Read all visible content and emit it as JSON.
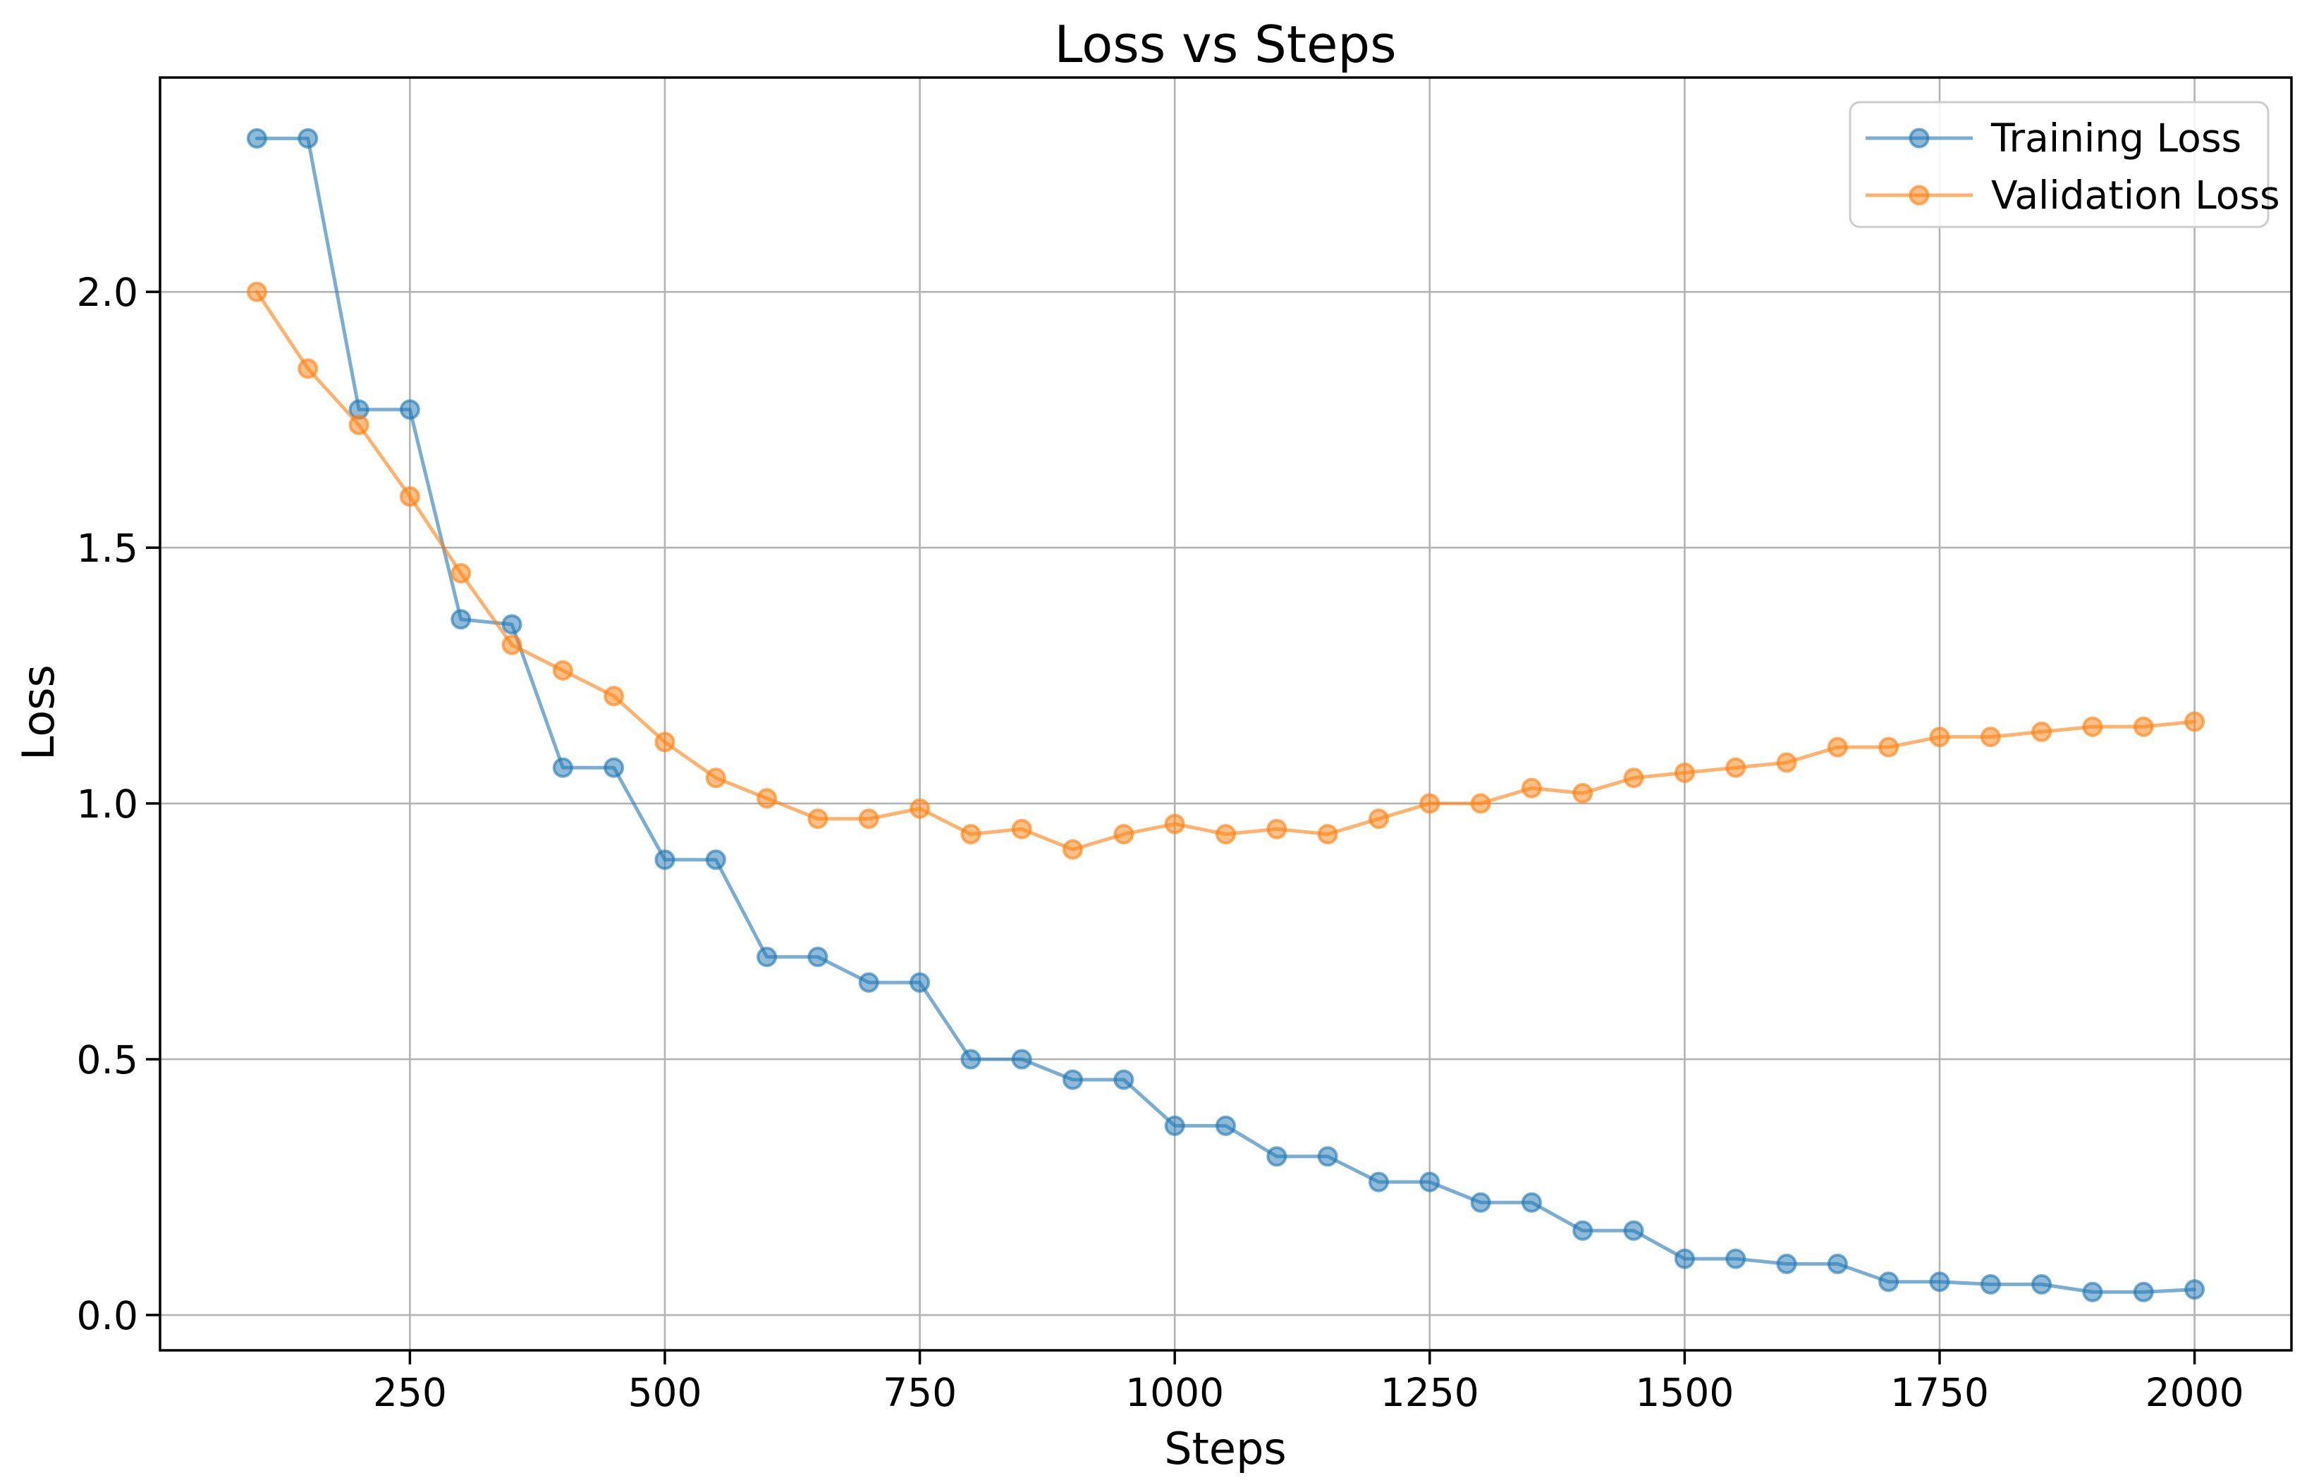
{
  "chart_data": {
    "type": "line",
    "title": "Loss vs Steps",
    "xlabel": "Steps",
    "ylabel": "Loss",
    "x": [
      100,
      150,
      200,
      250,
      300,
      350,
      400,
      450,
      500,
      550,
      600,
      650,
      700,
      750,
      800,
      850,
      900,
      950,
      1000,
      1050,
      1100,
      1150,
      1200,
      1250,
      1300,
      1350,
      1400,
      1450,
      1500,
      1550,
      1600,
      1650,
      1700,
      1750,
      1800,
      1850,
      1900,
      1950,
      2000
    ],
    "series": [
      {
        "name": "Training Loss",
        "color": "#1f77b4",
        "alpha": 0.6,
        "marker": "circle",
        "values": [
          2.3,
          2.3,
          1.77,
          1.77,
          1.36,
          1.35,
          1.07,
          1.07,
          0.89,
          0.89,
          0.7,
          0.7,
          0.65,
          0.65,
          0.5,
          0.5,
          0.46,
          0.46,
          0.37,
          0.37,
          0.31,
          0.31,
          0.26,
          0.26,
          0.22,
          0.22,
          0.165,
          0.165,
          0.11,
          0.11,
          0.1,
          0.1,
          0.065,
          0.065,
          0.06,
          0.06,
          0.045,
          0.045,
          0.05
        ]
      },
      {
        "name": "Validation Loss",
        "color": "#ff7f0e",
        "alpha": 0.6,
        "marker": "circle",
        "values": [
          2.0,
          1.85,
          1.74,
          1.6,
          1.45,
          1.31,
          1.26,
          1.21,
          1.12,
          1.05,
          1.01,
          0.97,
          0.97,
          0.99,
          0.94,
          0.95,
          0.91,
          0.94,
          0.96,
          0.94,
          0.95,
          0.94,
          0.97,
          1.0,
          1.0,
          1.03,
          1.02,
          1.05,
          1.06,
          1.07,
          1.08,
          1.11,
          1.11,
          1.13,
          1.13,
          1.14,
          1.15,
          1.15,
          1.16
        ]
      }
    ],
    "xticks": {
      "values": [
        250,
        500,
        750,
        1000,
        1250,
        1500,
        1750,
        2000
      ],
      "labels": [
        "250",
        "500",
        "750",
        "1000",
        "1250",
        "1500",
        "1750",
        "2000"
      ]
    },
    "yticks": {
      "values": [
        0.0,
        0.5,
        1.0,
        1.5,
        2.0
      ],
      "labels": [
        "0.0",
        "0.5",
        "1.0",
        "1.5",
        "2.0"
      ]
    },
    "xlim": [
      5,
      2095
    ],
    "ylim": [
      -0.069,
      2.419
    ],
    "grid": true,
    "grid_color": "#b3b3b3",
    "legend_position": "upper right",
    "background_color": "#ffffff",
    "spine_color": "#000000"
  }
}
